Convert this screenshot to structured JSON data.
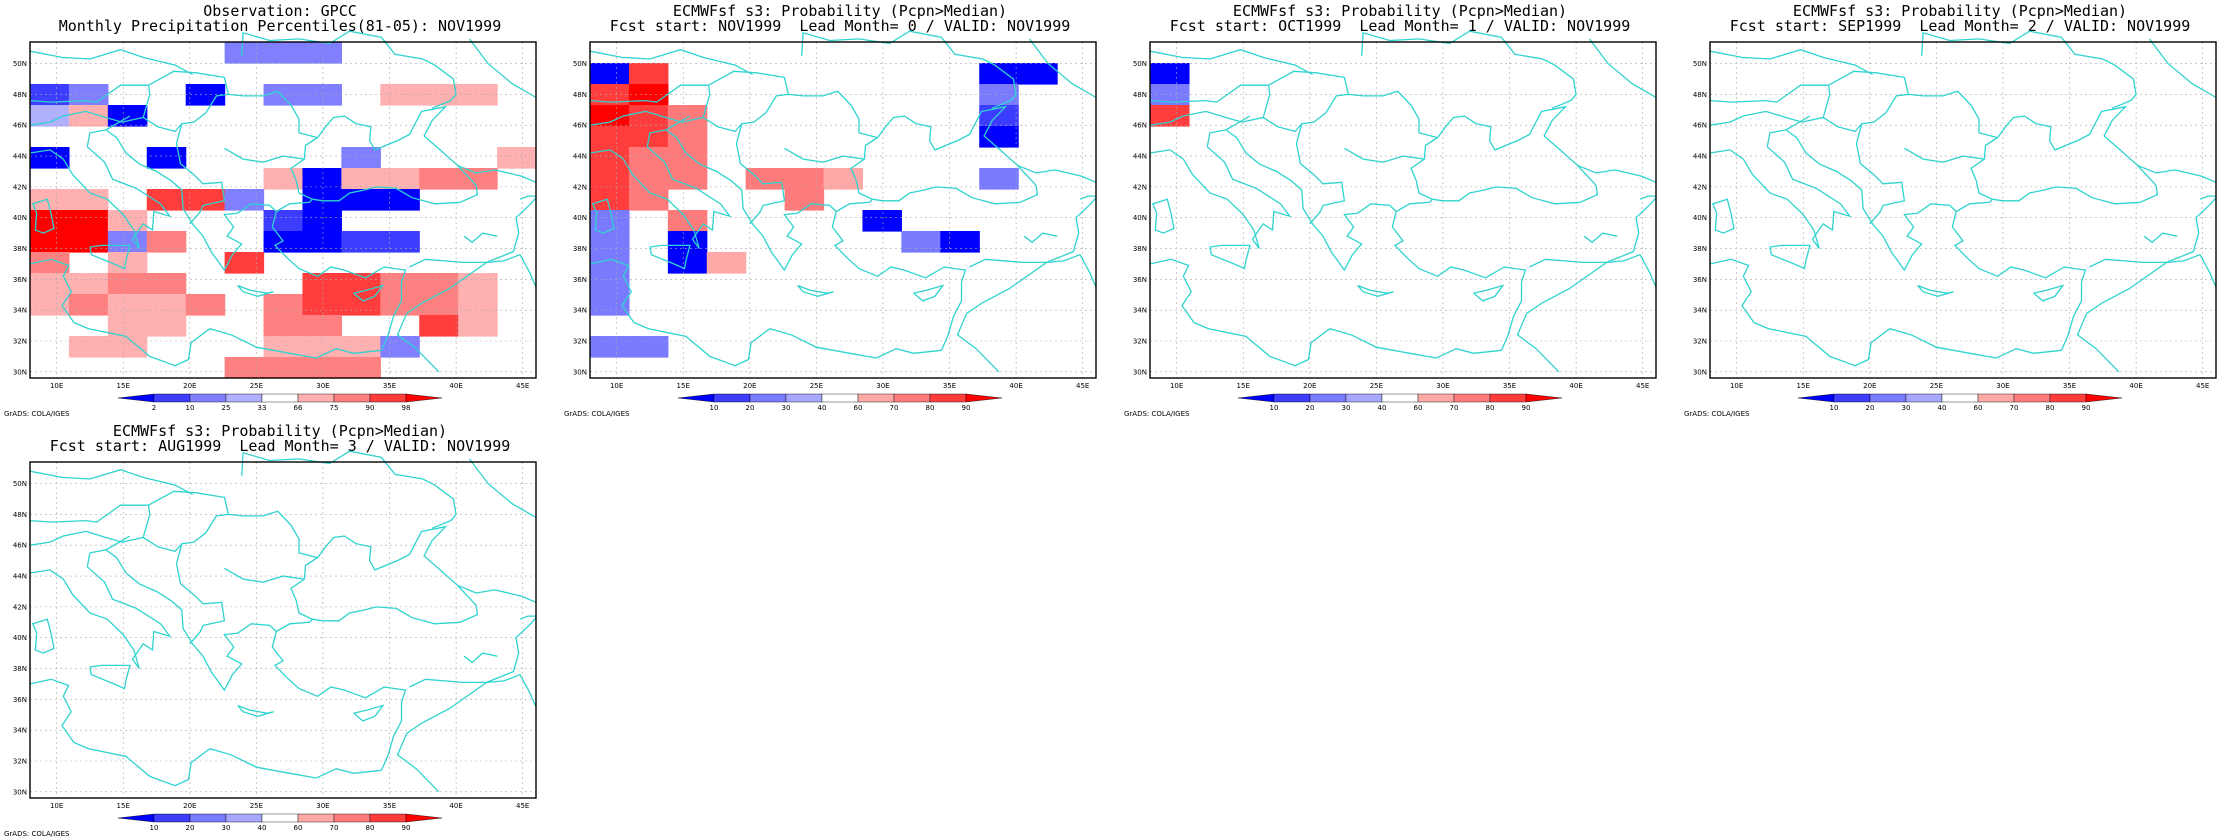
{
  "credit": "GrADS: COLA/IGES",
  "lat_labels": [
    "30N",
    "32N",
    "34N",
    "36N",
    "38N",
    "40N",
    "42N",
    "44N",
    "46N",
    "48N",
    "50N"
  ],
  "lon_labels": [
    "10E",
    "15E",
    "20E",
    "25E",
    "30E",
    "35E",
    "40E",
    "45E"
  ],
  "colors": {
    "coast": "#2fd3cf",
    "obs_scale": [
      "#0000ff",
      "#3d3dff",
      "#8080ff",
      "#b0b0ff",
      "#ffffff",
      "#ffb0b0",
      "#ff8080",
      "#ff3d3d",
      "#ff0000"
    ],
    "prob_scale": [
      "#0000ff",
      "#3d3dff",
      "#7a7aff",
      "#a8a8ff",
      "#ffffff",
      "#ffa8a8",
      "#ff7a7a",
      "#ff3d3d",
      "#ff0000"
    ]
  },
  "panels": [
    {
      "title_line1": "Observation: GPCC",
      "title_line2": "Monthly Precipitation Percentiles(81-05): NOV1999",
      "legend_labels": [
        "2",
        "10",
        "25",
        "33",
        "66",
        "75",
        "90",
        "98"
      ],
      "scale": "obs",
      "grid": [
        "0000033300000",
        "0000000000000",
        "2300103305550",
        "4510000000000",
        "0000000000000",
        "1001000030005",
        "0000005155660",
        "5507730111000",
        "8850002100000",
        "8836001122000",
        "6050070000000",
        "5566000776650",
        "5655606776650",
        "0055006600750",
        "0550005553000",
        "0000066660000"
      ]
    },
    {
      "title_line1": "ECMWFsf s3: Probability (Pcpn>Median)",
      "title_line2": "Fcst start: NOV1999  Lead Month= 0 / VALID: NOV1999",
      "legend_labels": [
        "10",
        "20",
        "30",
        "40",
        "60",
        "70",
        "80",
        "90"
      ],
      "scale": "prob",
      "grid": [
        "0000000000000",
        "1700000000110",
        "7800000000300",
        "8760000000200",
        "7760000000100",
        "7660000000000",
        "7660665000300",
        "7600060000000",
        "3060000100000",
        "3010000031000",
        "3015000000000",
        "3000000000000",
        "3000000000000",
        "0000000000000",
        "3300000000000",
        "0000000000000"
      ]
    },
    {
      "title_line1": "ECMWFsf s3: Probability (Pcpn>Median)",
      "title_line2": "Fcst start: OCT1999  Lead Month= 1 / VALID: NOV1999",
      "legend_labels": [
        "10",
        "20",
        "30",
        "40",
        "60",
        "70",
        "80",
        "90"
      ],
      "scale": "prob",
      "grid": [
        "0000000000000",
        "1000000000000",
        "3000000000000",
        "7000000000000",
        "0000000000000",
        "0000000000000",
        "0000000000000",
        "0000000000000",
        "0000000000000",
        "0000000000000",
        "0000000000000",
        "0000000000000",
        "0000000000000",
        "0000000000000",
        "0000000000000",
        "0000000000000"
      ]
    },
    {
      "title_line1": "ECMWFsf s3: Probability (Pcpn>Median)",
      "title_line2": "Fcst start: SEP1999  Lead Month= 2 / VALID: NOV1999",
      "legend_labels": [
        "10",
        "20",
        "30",
        "40",
        "60",
        "70",
        "80",
        "90"
      ],
      "scale": "prob",
      "grid": [
        "0000000000000",
        "0000000000000",
        "0000000000000",
        "0000000000000",
        "0000000000000",
        "0000000000000",
        "0000000000000",
        "0000000000000",
        "0000000000000",
        "0000000000000",
        "0000000000000",
        "0000000000000",
        "0000000000000",
        "0000000000000",
        "0000000000000",
        "0000000000000"
      ]
    },
    {
      "title_line1": "ECMWFsf s3: Probability (Pcpn>Median)",
      "title_line2": "Fcst start: AUG1999  Lead Month= 3 / VALID: NOV1999",
      "legend_labels": [
        "10",
        "20",
        "30",
        "40",
        "60",
        "70",
        "80",
        "90"
      ],
      "scale": "prob",
      "grid": [
        "0000000000000",
        "0000000000000",
        "0000000000000",
        "0000000000000",
        "0000000000000",
        "0000000000000",
        "0000000000000",
        "0000000000000",
        "0000000000000",
        "0000000000000",
        "0000000000000",
        "0000000000000",
        "0000000000000",
        "0000000000000",
        "0000000000000",
        "0000000000000"
      ]
    }
  ]
}
